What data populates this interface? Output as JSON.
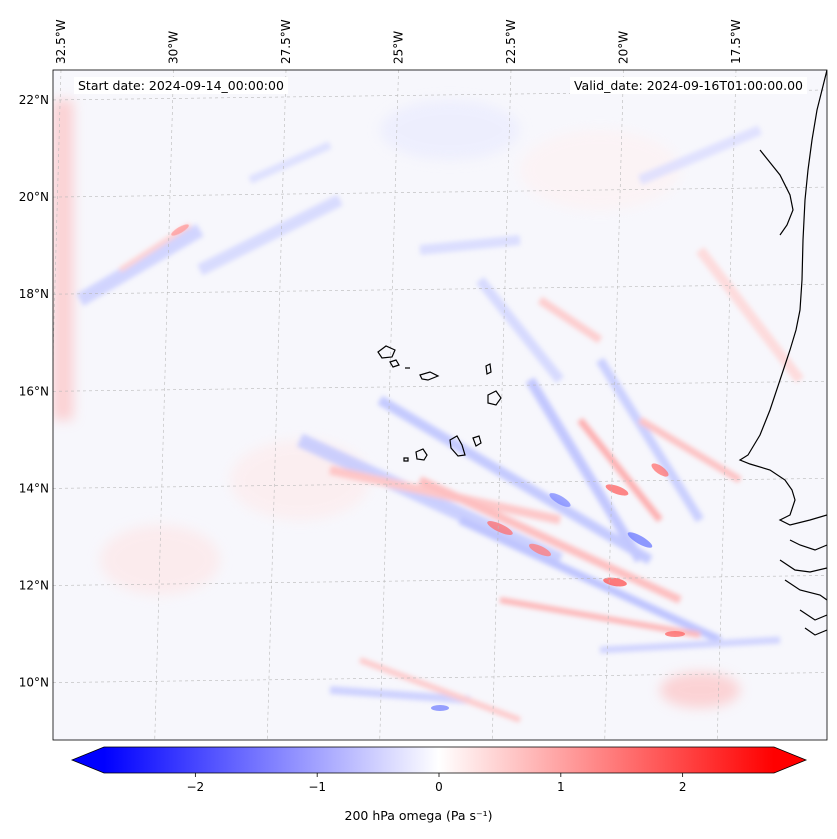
{
  "header": {
    "start_date": "Start date: 2024-09-14_00:00:00",
    "valid_date": "Valid_date: 2024-09-16T01:00:00.00"
  },
  "map": {
    "lon_labels": [
      "32.5°W",
      "30°W",
      "27.5°W",
      "25°W",
      "22.5°W",
      "20°W",
      "17.5°W"
    ],
    "lat_labels": [
      "22°N",
      "20°N",
      "18°N",
      "16°N",
      "14°N",
      "12°N",
      "10°N"
    ],
    "lon_values": [
      -32.5,
      -30,
      -27.5,
      -25,
      -22.5,
      -20,
      -17.5
    ],
    "lat_values": [
      22,
      20,
      18,
      16,
      14,
      12,
      10
    ],
    "extent": {
      "lon_min": -32.5,
      "lon_max": -15.3,
      "lat_min": 8.9,
      "lat_max": 22.7
    },
    "field": "omega 200 hPa",
    "colormap": "bwr",
    "negative_color": "#0000ff",
    "positive_color": "#ff0000",
    "coastline_color": "#000000",
    "gridlines": true
  },
  "colorbar": {
    "vmin": -2.75,
    "vmax": 2.75,
    "ticks": [
      -2,
      -1,
      0,
      1,
      2
    ],
    "tick_labels": [
      "−2",
      "−1",
      "0",
      "1",
      "2"
    ],
    "extend": "both",
    "label": "200 hPa omega (Pa s⁻¹)"
  }
}
